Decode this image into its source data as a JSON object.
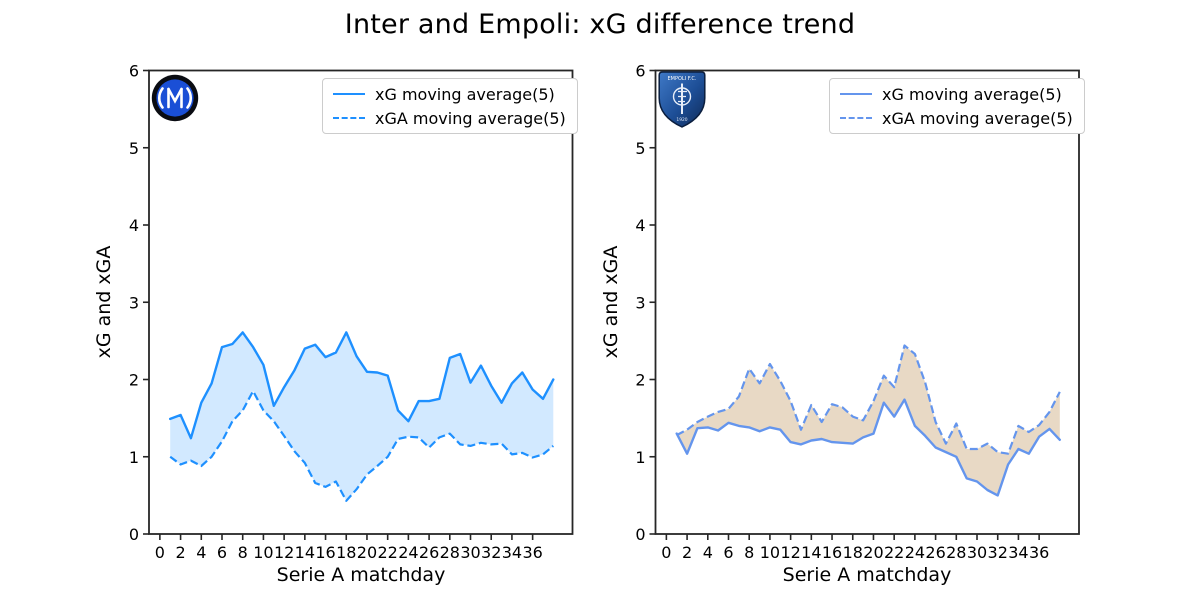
{
  "title": "Inter and Empoli: xG difference trend",
  "chart_data": [
    {
      "type": "area",
      "team": "Inter",
      "logo_icon": "inter-crest-icon",
      "xlabel": "Serie A matchday",
      "ylabel": "xG and xGA",
      "xlim": [
        -1.05,
        39.85
      ],
      "ylim": [
        0,
        6
      ],
      "xticks": [
        0,
        2,
        4,
        6,
        8,
        10,
        12,
        14,
        16,
        18,
        20,
        22,
        24,
        26,
        28,
        30,
        32,
        34,
        36
      ],
      "yticks": [
        0,
        1,
        2,
        3,
        4,
        5,
        6
      ],
      "grid": false,
      "legend_position": "upper right",
      "line_color": "#1E90FF",
      "fill_color": "rgba(30,144,255,0.2)",
      "x": [
        1,
        2,
        3,
        4,
        5,
        6,
        7,
        8,
        9,
        10,
        11,
        12,
        13,
        14,
        15,
        16,
        17,
        18,
        19,
        20,
        21,
        22,
        23,
        24,
        25,
        26,
        27,
        28,
        29,
        30,
        31,
        32,
        33,
        34,
        35,
        36,
        37,
        38
      ],
      "series": [
        {
          "name": "xG moving average(5)",
          "line_style": "solid",
          "values": [
            1.49,
            1.54,
            1.24,
            1.7,
            1.95,
            2.42,
            2.46,
            2.61,
            2.42,
            2.19,
            1.66,
            1.9,
            2.12,
            2.4,
            2.45,
            2.29,
            2.35,
            2.61,
            2.3,
            2.1,
            2.09,
            2.05,
            1.6,
            1.46,
            1.72,
            1.72,
            1.75,
            2.28,
            2.33,
            1.96,
            2.18,
            1.92,
            1.7,
            1.95,
            2.09,
            1.87,
            1.75,
            2.0
          ]
        },
        {
          "name": "xGA moving average(5)",
          "line_style": "dashed",
          "values": [
            1.0,
            0.9,
            0.95,
            0.88,
            1.0,
            1.2,
            1.46,
            1.6,
            1.85,
            1.6,
            1.46,
            1.27,
            1.07,
            0.92,
            0.66,
            0.61,
            0.68,
            0.43,
            0.58,
            0.77,
            0.88,
            1.0,
            1.23,
            1.26,
            1.25,
            1.12,
            1.25,
            1.3,
            1.16,
            1.14,
            1.18,
            1.16,
            1.17,
            1.03,
            1.05,
            0.99,
            1.03,
            1.14
          ]
        }
      ]
    },
    {
      "type": "area",
      "team": "Empoli",
      "logo_icon": "empoli-crest-icon",
      "xlabel": "Serie A matchday",
      "ylabel": "xG and xGA",
      "xlim": [
        -1.05,
        39.85
      ],
      "ylim": [
        0,
        6
      ],
      "xticks": [
        0,
        2,
        4,
        6,
        8,
        10,
        12,
        14,
        16,
        18,
        20,
        22,
        24,
        26,
        28,
        30,
        32,
        34,
        36
      ],
      "yticks": [
        0,
        1,
        2,
        3,
        4,
        5,
        6
      ],
      "grid": false,
      "legend_position": "upper right",
      "line_color": "#6495ED",
      "fill_color": "rgba(210,180,140,0.5)",
      "x": [
        1,
        2,
        3,
        4,
        5,
        6,
        7,
        8,
        9,
        10,
        11,
        12,
        13,
        14,
        15,
        16,
        17,
        18,
        19,
        20,
        21,
        22,
        23,
        24,
        25,
        26,
        27,
        28,
        29,
        30,
        31,
        32,
        33,
        34,
        35,
        36,
        37,
        38
      ],
      "series": [
        {
          "name": "xG moving average(5)",
          "line_style": "solid",
          "values": [
            1.3,
            1.04,
            1.37,
            1.38,
            1.34,
            1.44,
            1.4,
            1.38,
            1.33,
            1.38,
            1.35,
            1.19,
            1.16,
            1.21,
            1.23,
            1.19,
            1.18,
            1.17,
            1.25,
            1.3,
            1.7,
            1.52,
            1.74,
            1.4,
            1.27,
            1.12,
            1.06,
            1.0,
            0.72,
            0.68,
            0.57,
            0.5,
            0.9,
            1.1,
            1.04,
            1.26,
            1.36,
            1.22
          ]
        },
        {
          "name": "xGA moving average(5)",
          "line_style": "dashed",
          "values": [
            1.28,
            1.35,
            1.45,
            1.52,
            1.58,
            1.62,
            1.78,
            2.14,
            1.95,
            2.2,
            1.98,
            1.72,
            1.35,
            1.67,
            1.45,
            1.68,
            1.64,
            1.52,
            1.47,
            1.72,
            2.05,
            1.9,
            2.44,
            2.33,
            1.96,
            1.45,
            1.17,
            1.43,
            1.1,
            1.1,
            1.17,
            1.06,
            1.04,
            1.4,
            1.32,
            1.41,
            1.58,
            1.84
          ]
        }
      ]
    }
  ]
}
